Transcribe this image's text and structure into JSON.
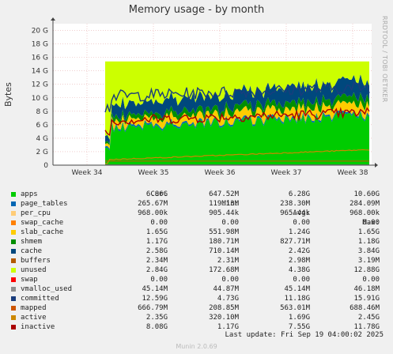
{
  "chart_data": {
    "type": "area",
    "title": "Memory usage - by month",
    "ylabel": "Bytes",
    "ylim": [
      0,
      21
    ],
    "yticks": [
      "0",
      "2 G",
      "4 G",
      "6 G",
      "8 G",
      "10 G",
      "12 G",
      "14 G",
      "16 G",
      "18 G",
      "20 G"
    ],
    "xticks": [
      "Week 34",
      "Week 35",
      "Week 36",
      "Week 37",
      "Week 38"
    ],
    "columns": [
      "Cur:",
      "Min:",
      "Avg:",
      "Max:"
    ],
    "series": [
      {
        "name": "apps",
        "color": "#00cc00",
        "cur": "6.86G",
        "min": "647.52M",
        "avg": "6.28G",
        "max": "10.60G"
      },
      {
        "name": "page_tables",
        "color": "#0066b3",
        "cur": "265.67M",
        "min": "119.13M",
        "avg": "238.30M",
        "max": "284.09M"
      },
      {
        "name": "per_cpu",
        "color": "#ffcc77",
        "cur": "968.00k",
        "min": "905.44k",
        "avg": "965.44k",
        "max": "968.00k"
      },
      {
        "name": "swap_cache",
        "color": "#ff8000",
        "cur": "0.00",
        "min": "0.00",
        "avg": "0.00",
        "max": "0.00"
      },
      {
        "name": "slab_cache",
        "color": "#ffcc00",
        "cur": "1.65G",
        "min": "551.98M",
        "avg": "1.24G",
        "max": "1.65G"
      },
      {
        "name": "shmem",
        "color": "#008f00",
        "cur": "1.17G",
        "min": "180.71M",
        "avg": "827.71M",
        "max": "1.18G"
      },
      {
        "name": "cache",
        "color": "#00487d",
        "cur": "2.58G",
        "min": "710.14M",
        "avg": "2.42G",
        "max": "3.84G"
      },
      {
        "name": "buffers",
        "color": "#b35a00",
        "cur": "2.34M",
        "min": "2.31M",
        "avg": "2.98M",
        "max": "3.19M"
      },
      {
        "name": "unused",
        "color": "#ccff00",
        "cur": "2.84G",
        "min": "172.68M",
        "avg": "4.38G",
        "max": "12.88G"
      },
      {
        "name": "swap",
        "color": "#ff0000",
        "cur": "0.00",
        "min": "0.00",
        "avg": "0.00",
        "max": "0.00"
      },
      {
        "name": "vmalloc_used",
        "color": "#8f8f8f",
        "cur": "45.14M",
        "min": "44.87M",
        "avg": "45.14M",
        "max": "46.18M"
      },
      {
        "name": "committed",
        "color": "#1a3d7d",
        "cur": "12.59G",
        "min": "4.73G",
        "avg": "11.18G",
        "max": "15.91G"
      },
      {
        "name": "mapped",
        "color": "#cc5500",
        "cur": "666.79M",
        "min": "208.85M",
        "avg": "563.01M",
        "max": "688.46M"
      },
      {
        "name": "active",
        "color": "#cc8800",
        "cur": "2.35G",
        "min": "320.10M",
        "avg": "1.69G",
        "max": "2.45G"
      },
      {
        "name": "inactive",
        "color": "#aa0000",
        "cur": "8.08G",
        "min": "1.17G",
        "avg": "7.55G",
        "max": "11.78G"
      }
    ],
    "grid": true
  },
  "footer": {
    "last_update": "Last update: Fri Sep 19 04:00:02 2025",
    "version": "Munin 2.0.69"
  },
  "watermark": "RRDTOOL / TOBI OETIKER"
}
